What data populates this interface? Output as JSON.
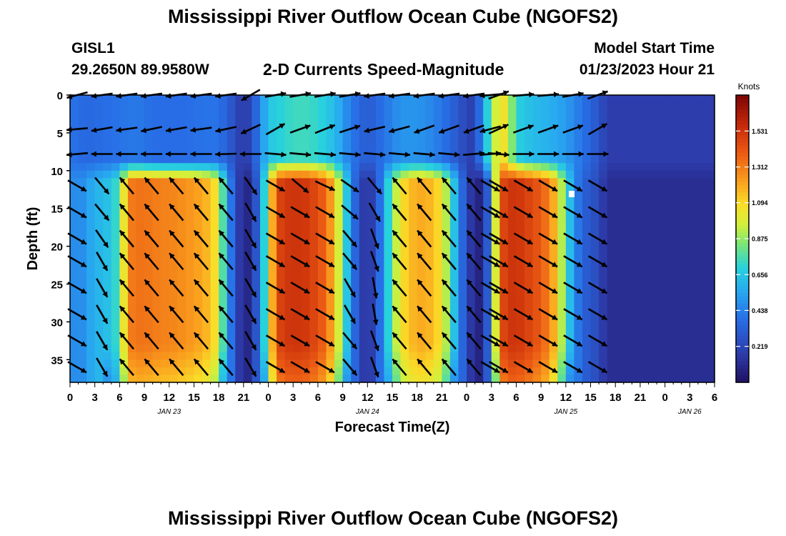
{
  "page": {
    "title": "Mississippi River Outflow Ocean Cube (NGOFS2)",
    "footer_title": "Mississippi River Outflow Ocean Cube (NGOFS2)",
    "station_id": "GISL1",
    "station_coords": "29.2650N  89.9580W",
    "plot_subtitle": "2-D Currents Speed-Magnitude",
    "model_start_label": "Model Start Time",
    "model_start_value": "01/23/2023 Hour 21"
  },
  "chart_data": {
    "type": "heatmap",
    "title": "2-D Currents Speed-Magnitude",
    "xlabel": "Forecast Time(Z)",
    "ylabel": "Depth (ft)",
    "colorbar_label": "Knots",
    "colorbar_ticks": [
      "1.531",
      "1.312",
      "1.094",
      "0.875",
      "0.656",
      "0.438",
      "0.219"
    ],
    "colorbar_tick_values": [
      1.531,
      1.312,
      1.094,
      0.875,
      0.656,
      0.438,
      0.219
    ],
    "colorbar_range": [
      0.0,
      1.75
    ],
    "x_range_hours": [
      0,
      78
    ],
    "x_tick_labels": [
      "0",
      "3",
      "6",
      "9",
      "12",
      "15",
      "18",
      "21",
      "0",
      "3",
      "6",
      "9",
      "12",
      "15",
      "18",
      "21",
      "0",
      "3",
      "6",
      "9",
      "12",
      "15",
      "18",
      "21",
      "0",
      "3",
      "6"
    ],
    "date_labels": [
      "JAN 23",
      "JAN 24",
      "JAN 25",
      "JAN 26"
    ],
    "date_label_hours": [
      12,
      36,
      60,
      75
    ],
    "y_range": [
      0,
      38
    ],
    "y_ticks": [
      0,
      5,
      10,
      15,
      20,
      25,
      30,
      35
    ],
    "speed_by_hour": [
      [
        0,
        0.5
      ],
      [
        1,
        0.45
      ],
      [
        2,
        0.52
      ],
      [
        3,
        0.58
      ],
      [
        4,
        0.62
      ],
      [
        5,
        0.66
      ],
      [
        6,
        0.78
      ],
      [
        7,
        1.3
      ],
      [
        8,
        1.34
      ],
      [
        9,
        1.34
      ],
      [
        10,
        1.32
      ],
      [
        11,
        1.3
      ],
      [
        12,
        1.3
      ],
      [
        13,
        1.28
      ],
      [
        14,
        1.26
      ],
      [
        15,
        1.24
      ],
      [
        16,
        1.2
      ],
      [
        17,
        1.15
      ],
      [
        18,
        1.0
      ],
      [
        19,
        0.55
      ],
      [
        20,
        0.25
      ],
      [
        21,
        0.08
      ],
      [
        22,
        0.12
      ],
      [
        23,
        0.45
      ],
      [
        24,
        0.95
      ],
      [
        25,
        1.45
      ],
      [
        26,
        1.52
      ],
      [
        27,
        1.53
      ],
      [
        28,
        1.53
      ],
      [
        29,
        1.5
      ],
      [
        30,
        1.45
      ],
      [
        31,
        1.35
      ],
      [
        32,
        1.15
      ],
      [
        33,
        0.8
      ],
      [
        34,
        0.5
      ],
      [
        35,
        0.2
      ],
      [
        36,
        0.15
      ],
      [
        37,
        0.22
      ],
      [
        38,
        0.55
      ],
      [
        39,
        0.85
      ],
      [
        40,
        1.05
      ],
      [
        41,
        1.15
      ],
      [
        42,
        1.2
      ],
      [
        43,
        1.2
      ],
      [
        44,
        1.15
      ],
      [
        45,
        1.05
      ],
      [
        46,
        0.8
      ],
      [
        47,
        0.48
      ],
      [
        48,
        0.22
      ],
      [
        49,
        0.1
      ],
      [
        50,
        0.06
      ],
      [
        51,
        0.55
      ],
      [
        52,
        1.42
      ],
      [
        53,
        1.53
      ],
      [
        54,
        1.53
      ],
      [
        55,
        1.5
      ],
      [
        56,
        1.45
      ],
      [
        57,
        1.4
      ],
      [
        58,
        1.3
      ],
      [
        59,
        1.1
      ],
      [
        60,
        0.75
      ],
      [
        61,
        0.5
      ],
      [
        62,
        0.32
      ],
      [
        63,
        0.3
      ],
      [
        64,
        0.22
      ],
      [
        65,
        0.12
      ]
    ],
    "surface_speed_by_hour": [
      [
        0,
        0.4
      ],
      [
        2,
        0.36
      ],
      [
        4,
        0.38
      ],
      [
        6,
        0.4
      ],
      [
        8,
        0.42
      ],
      [
        10,
        0.38
      ],
      [
        12,
        0.38
      ],
      [
        14,
        0.38
      ],
      [
        16,
        0.4
      ],
      [
        18,
        0.4
      ],
      [
        20,
        0.25
      ],
      [
        21,
        0.15
      ],
      [
        22,
        0.25
      ],
      [
        24,
        0.65
      ],
      [
        26,
        0.72
      ],
      [
        28,
        0.75
      ],
      [
        30,
        0.72
      ],
      [
        32,
        0.62
      ],
      [
        34,
        0.42
      ],
      [
        36,
        0.3
      ],
      [
        38,
        0.4
      ],
      [
        40,
        0.5
      ],
      [
        42,
        0.5
      ],
      [
        44,
        0.45
      ],
      [
        46,
        0.35
      ],
      [
        48,
        0.22
      ],
      [
        49,
        0.18
      ],
      [
        50,
        0.55
      ],
      [
        52,
        1.1
      ],
      [
        53,
        1.0
      ],
      [
        54,
        0.7
      ],
      [
        56,
        0.62
      ],
      [
        58,
        0.58
      ],
      [
        60,
        0.52
      ],
      [
        62,
        0.4
      ],
      [
        64,
        0.28
      ],
      [
        65,
        0.18
      ]
    ],
    "surface_layer_bottom_ft": 10,
    "vectors": {
      "hours": [
        0,
        3,
        6,
        9,
        12,
        15,
        18,
        21,
        24,
        27,
        30,
        33,
        36,
        39,
        42,
        45,
        48,
        50,
        51,
        54,
        57,
        60,
        63
      ],
      "depths": [
        0,
        4.5,
        7.8,
        12,
        15.5,
        19,
        22,
        25.5,
        29,
        32.5,
        36
      ],
      "direction_deg": [
        [
          195,
          188,
          188,
          188,
          188,
          188,
          188,
          210,
          10,
          10,
          10,
          10,
          188,
          188,
          188,
          188,
          188,
          185,
          20,
          5,
          5,
          10,
          20
        ],
        [
          185,
          190,
          188,
          192,
          190,
          188,
          192,
          205,
          30,
          20,
          22,
          18,
          193,
          195,
          200,
          200,
          200,
          195,
          25,
          20,
          20,
          20,
          30
        ],
        [
          185,
          180,
          180,
          180,
          180,
          180,
          182,
          180,
          355,
          355,
          355,
          355,
          355,
          355,
          355,
          355,
          5,
          5,
          355,
          0,
          0,
          0,
          0
        ],
        [
          330,
          310,
          130,
          130,
          130,
          130,
          130,
          305,
          330,
          320,
          335,
          325,
          310,
          130,
          130,
          130,
          130,
          330,
          330,
          330,
          330,
          330,
          330
        ],
        [
          330,
          310,
          130,
          130,
          130,
          130,
          130,
          300,
          330,
          330,
          330,
          320,
          300,
          130,
          130,
          130,
          130,
          330,
          330,
          330,
          330,
          330,
          330
        ],
        [
          330,
          305,
          130,
          130,
          130,
          130,
          130,
          300,
          330,
          330,
          330,
          310,
          290,
          130,
          130,
          130,
          130,
          330,
          330,
          330,
          330,
          330,
          330
        ],
        [
          330,
          300,
          130,
          130,
          130,
          130,
          130,
          300,
          330,
          330,
          330,
          310,
          290,
          130,
          130,
          130,
          130,
          330,
          330,
          330,
          330,
          330,
          330
        ],
        [
          330,
          300,
          130,
          130,
          130,
          130,
          130,
          300,
          330,
          330,
          330,
          300,
          280,
          130,
          130,
          130,
          130,
          330,
          330,
          330,
          330,
          330,
          330
        ],
        [
          330,
          300,
          130,
          130,
          130,
          130,
          130,
          300,
          330,
          330,
          330,
          300,
          280,
          130,
          130,
          130,
          130,
          330,
          330,
          330,
          330,
          330,
          330
        ],
        [
          330,
          300,
          130,
          130,
          130,
          130,
          130,
          300,
          330,
          330,
          330,
          310,
          290,
          130,
          130,
          130,
          130,
          330,
          330,
          330,
          330,
          330,
          330
        ],
        [
          330,
          300,
          130,
          130,
          130,
          130,
          130,
          300,
          330,
          330,
          330,
          310,
          290,
          130,
          130,
          130,
          130,
          330,
          330,
          330,
          330,
          330,
          330
        ]
      ]
    }
  }
}
